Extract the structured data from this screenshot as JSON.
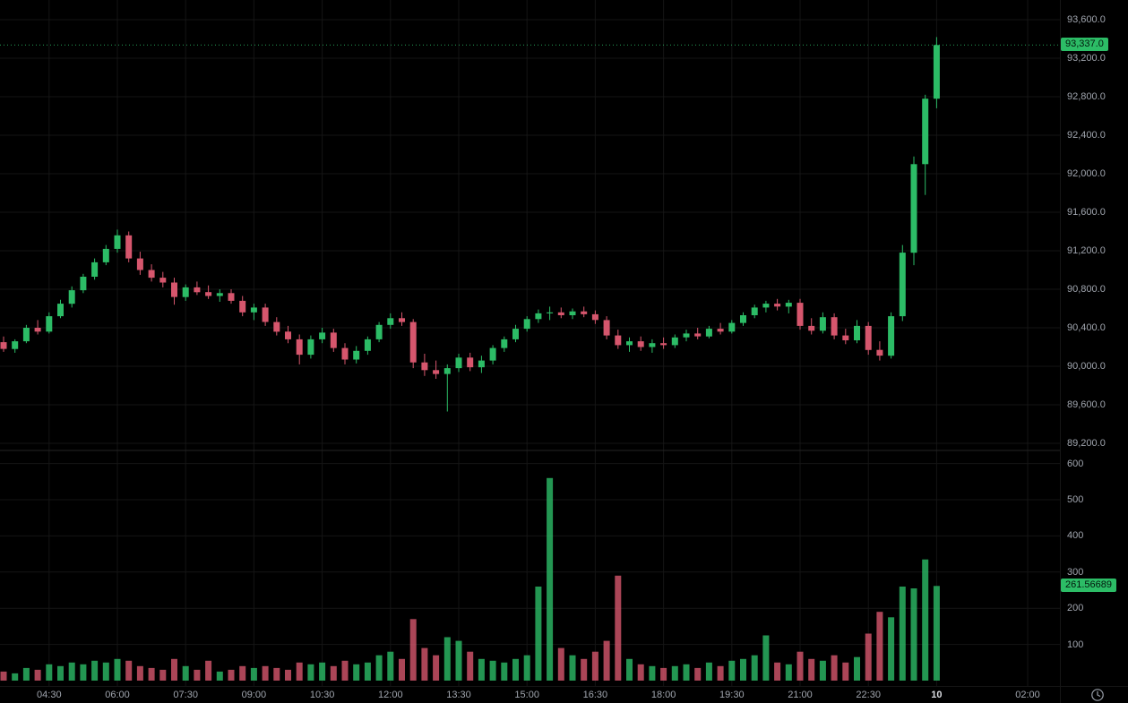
{
  "colors": {
    "background": "#000000",
    "grid": "#151515",
    "separator": "#242424",
    "up": "#2cbc66",
    "down": "#d6566d",
    "axis_text": "#a0a5ae",
    "axis_text_bright": "#dcdee3",
    "badge_text_on_green": "#03170d"
  },
  "chart": {
    "price_axis": {
      "ticks": [
        {
          "label": "93,600.0",
          "value": 93600
        },
        {
          "label": "93,200.0",
          "value": 93200
        },
        {
          "label": "92,800.0",
          "value": 92800
        },
        {
          "label": "92,400.0",
          "value": 92400
        },
        {
          "label": "92,000.0",
          "value": 92000
        },
        {
          "label": "91,600.0",
          "value": 91600
        },
        {
          "label": "91,200.0",
          "value": 91200
        },
        {
          "label": "90,800.0",
          "value": 90800
        },
        {
          "label": "90,400.0",
          "value": 90400
        },
        {
          "label": "90,000.0",
          "value": 90000
        },
        {
          "label": "89,600.0",
          "value": 89600
        },
        {
          "label": "89,200.0",
          "value": 89200
        }
      ],
      "last_price_label": "93,337.0"
    },
    "volume_axis": {
      "ticks": [
        {
          "label": "600",
          "value": 600
        },
        {
          "label": "500",
          "value": 500
        },
        {
          "label": "400",
          "value": 400
        },
        {
          "label": "300",
          "value": 300
        },
        {
          "label": "200",
          "value": 200
        },
        {
          "label": "100",
          "value": 100
        }
      ],
      "last_volume_label": "261.56689"
    },
    "time_axis": {
      "ticks": [
        {
          "label": "04:30",
          "hour": 4.5
        },
        {
          "label": "06:00",
          "hour": 6
        },
        {
          "label": "07:30",
          "hour": 7.5
        },
        {
          "label": "09:00",
          "hour": 9
        },
        {
          "label": "10:30",
          "hour": 10.5
        },
        {
          "label": "12:00",
          "hour": 12
        },
        {
          "label": "13:30",
          "hour": 13.5
        },
        {
          "label": "15:00",
          "hour": 15
        },
        {
          "label": "16:30",
          "hour": 16.5
        },
        {
          "label": "18:00",
          "hour": 18
        },
        {
          "label": "19:30",
          "hour": 19.5
        },
        {
          "label": "21:00",
          "hour": 21
        },
        {
          "label": "22:30",
          "hour": 22.5
        },
        {
          "label": "10",
          "hour": 24,
          "bold": true
        },
        {
          "label": "02:00",
          "hour": 26
        }
      ]
    },
    "footer": {
      "clock_icon": "timezone-clock-icon"
    }
  },
  "chart_data": {
    "type": "candlestick",
    "interval_minutes": 15,
    "start_hour": 3.5,
    "price_ylim": [
      89200,
      93600
    ],
    "volume_ylim": [
      0,
      600
    ],
    "grid": true,
    "last_price": 93337.0,
    "last_volume": 261.56689,
    "ohlc": [
      [
        90250,
        90310,
        90150,
        90180
      ],
      [
        90180,
        90280,
        90140,
        90260
      ],
      [
        90260,
        90430,
        90240,
        90400
      ],
      [
        90400,
        90480,
        90330,
        90360
      ],
      [
        90360,
        90560,
        90340,
        90520
      ],
      [
        90520,
        90690,
        90500,
        90650
      ],
      [
        90650,
        90830,
        90610,
        90790
      ],
      [
        90790,
        90960,
        90760,
        90930
      ],
      [
        90930,
        91120,
        90900,
        91080
      ],
      [
        91080,
        91260,
        91050,
        91220
      ],
      [
        91220,
        91420,
        91180,
        91360
      ],
      [
        91360,
        91400,
        91080,
        91120
      ],
      [
        91120,
        91190,
        90950,
        91000
      ],
      [
        91000,
        91060,
        90880,
        90920
      ],
      [
        90920,
        90980,
        90820,
        90870
      ],
      [
        90870,
        90920,
        90640,
        90720
      ],
      [
        90720,
        90850,
        90680,
        90820
      ],
      [
        90820,
        90880,
        90740,
        90770
      ],
      [
        90770,
        90840,
        90700,
        90730
      ],
      [
        90730,
        90800,
        90670,
        90760
      ],
      [
        90760,
        90800,
        90650,
        90680
      ],
      [
        90680,
        90730,
        90520,
        90560
      ],
      [
        90560,
        90650,
        90480,
        90610
      ],
      [
        90610,
        90650,
        90420,
        90460
      ],
      [
        90460,
        90510,
        90320,
        90360
      ],
      [
        90360,
        90420,
        90240,
        90280
      ],
      [
        90280,
        90330,
        90020,
        90120
      ],
      [
        90120,
        90320,
        90080,
        90280
      ],
      [
        90280,
        90400,
        90240,
        90350
      ],
      [
        90350,
        90390,
        90150,
        90190
      ],
      [
        90190,
        90240,
        90020,
        90070
      ],
      [
        90070,
        90210,
        90030,
        90160
      ],
      [
        90160,
        90310,
        90120,
        90280
      ],
      [
        90280,
        90460,
        90250,
        90430
      ],
      [
        90430,
        90550,
        90390,
        90500
      ],
      [
        90500,
        90560,
        90420,
        90460
      ],
      [
        90460,
        90490,
        89980,
        90040
      ],
      [
        90040,
        90130,
        89900,
        89960
      ],
      [
        89960,
        90060,
        89870,
        89920
      ],
      [
        89920,
        90020,
        89530,
        89980
      ],
      [
        89980,
        90130,
        89940,
        90090
      ],
      [
        90090,
        90140,
        89950,
        89990
      ],
      [
        89990,
        90110,
        89930,
        90060
      ],
      [
        90060,
        90220,
        90020,
        90190
      ],
      [
        90190,
        90310,
        90150,
        90280
      ],
      [
        90280,
        90430,
        90250,
        90390
      ],
      [
        90390,
        90520,
        90360,
        90490
      ],
      [
        90490,
        90590,
        90450,
        90550
      ],
      [
        90550,
        90620,
        90480,
        90560
      ],
      [
        90560,
        90610,
        90500,
        90530
      ],
      [
        90530,
        90600,
        90490,
        90570
      ],
      [
        90570,
        90620,
        90510,
        90540
      ],
      [
        90540,
        90580,
        90440,
        90480
      ],
      [
        90480,
        90520,
        90280,
        90320
      ],
      [
        90320,
        90380,
        90180,
        90220
      ],
      [
        90220,
        90300,
        90150,
        90260
      ],
      [
        90260,
        90310,
        90160,
        90200
      ],
      [
        90200,
        90280,
        90140,
        90240
      ],
      [
        90240,
        90300,
        90180,
        90220
      ],
      [
        90220,
        90330,
        90190,
        90300
      ],
      [
        90300,
        90380,
        90260,
        90340
      ],
      [
        90340,
        90400,
        90280,
        90310
      ],
      [
        90310,
        90420,
        90290,
        90390
      ],
      [
        90390,
        90450,
        90330,
        90360
      ],
      [
        90360,
        90480,
        90340,
        90450
      ],
      [
        90450,
        90560,
        90420,
        90530
      ],
      [
        90530,
        90640,
        90500,
        90610
      ],
      [
        90610,
        90680,
        90560,
        90650
      ],
      [
        90650,
        90700,
        90580,
        90620
      ],
      [
        90620,
        90690,
        90550,
        90660
      ],
      [
        90660,
        90700,
        90380,
        90420
      ],
      [
        90420,
        90500,
        90330,
        90370
      ],
      [
        90370,
        90560,
        90340,
        90510
      ],
      [
        90510,
        90550,
        90280,
        90320
      ],
      [
        90320,
        90390,
        90230,
        90270
      ],
      [
        90270,
        90480,
        90240,
        90420
      ],
      [
        90420,
        90460,
        90120,
        90170
      ],
      [
        90170,
        90260,
        90060,
        90110
      ],
      [
        90110,
        90560,
        90080,
        90520
      ],
      [
        90520,
        91260,
        90470,
        91180
      ],
      [
        91180,
        92180,
        91050,
        92100
      ],
      [
        92100,
        92820,
        91780,
        92780
      ],
      [
        92780,
        93420,
        92680,
        93337
      ]
    ],
    "volume": [
      25,
      20,
      35,
      30,
      45,
      40,
      50,
      45,
      55,
      50,
      60,
      55,
      40,
      35,
      30,
      60,
      40,
      30,
      55,
      25,
      30,
      40,
      35,
      40,
      35,
      30,
      50,
      45,
      50,
      40,
      55,
      45,
      50,
      70,
      80,
      60,
      170,
      90,
      70,
      120,
      110,
      80,
      60,
      55,
      50,
      60,
      70,
      260,
      560,
      90,
      70,
      60,
      80,
      110,
      290,
      60,
      45,
      40,
      35,
      40,
      45,
      35,
      50,
      40,
      55,
      60,
      70,
      125,
      50,
      45,
      80,
      60,
      55,
      70,
      50,
      65,
      130,
      190,
      175,
      260,
      255,
      335,
      261.56689
    ]
  }
}
